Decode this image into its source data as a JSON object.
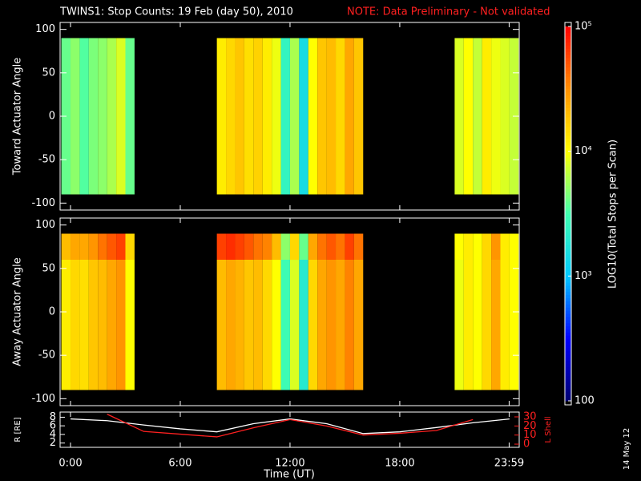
{
  "chart_data": [
    {
      "type": "heatmap",
      "title": "TWINS1: Stop Counts: 19 Feb (day  50), 2010",
      "annotation": "NOTE: Data Preliminary - Not validated",
      "ylabel": "Toward Actuator Angle",
      "xlim": [
        -0.57,
        24.53
      ],
      "ylim": [
        -108,
        108
      ],
      "yticks": [
        -100,
        -50,
        0,
        50,
        100
      ],
      "x_bins": [
        -0.5,
        0,
        0.5,
        1,
        1.5,
        2,
        2.5,
        3,
        3.5,
        4,
        4.5,
        5,
        5.5,
        6,
        6.5,
        7,
        7.5,
        8,
        8.5,
        9,
        9.5,
        10,
        10.5,
        11,
        11.5,
        12,
        12.5,
        13,
        13.5,
        14,
        14.5,
        15,
        15.5,
        16,
        16.5,
        17,
        17.5,
        18,
        18.5,
        19,
        19.5,
        20,
        20.5,
        21,
        21.5,
        22,
        22.5,
        23,
        23.5,
        24,
        24.5
      ],
      "y_bins": [
        -90,
        90
      ],
      "z": [
        [
          4000,
          5000,
          3500,
          4500,
          5000,
          6000,
          8000,
          4000,
          null,
          null,
          null,
          null,
          null,
          null,
          null,
          null,
          null,
          12000,
          15000,
          18000,
          14000,
          16000,
          12000,
          9000,
          2500,
          6000,
          1500,
          10000,
          18000,
          20000,
          15000,
          25000,
          18000,
          null,
          null,
          null,
          null,
          null,
          null,
          null,
          null,
          null,
          null,
          8000,
          10000,
          7000,
          12000,
          9000,
          8000,
          7000
        ]
      ]
    },
    {
      "type": "heatmap",
      "ylabel": "Away Actuator Angle",
      "xlim": [
        -0.57,
        24.53
      ],
      "ylim": [
        -108,
        108
      ],
      "yticks": [
        -100,
        -50,
        0,
        50,
        100
      ],
      "x_bins": [
        -0.5,
        0,
        0.5,
        1,
        1.5,
        2,
        2.5,
        3,
        3.5,
        4,
        4.5,
        5,
        5.5,
        6,
        6.5,
        7,
        7.5,
        8,
        8.5,
        9,
        9.5,
        10,
        10.5,
        11,
        11.5,
        12,
        12.5,
        13,
        13.5,
        14,
        14.5,
        15,
        15.5,
        16,
        16.5,
        17,
        17.5,
        18,
        18.5,
        19,
        19.5,
        20,
        20.5,
        21,
        21.5,
        22,
        22.5,
        23,
        23.5,
        24,
        24.5
      ],
      "y_bins": [
        -90,
        60,
        90
      ],
      "z": [
        [
          12000,
          15000,
          14000,
          18000,
          20000,
          25000,
          30000,
          10000,
          null,
          null,
          null,
          null,
          null,
          null,
          null,
          null,
          null,
          20000,
          25000,
          22000,
          18000,
          20000,
          15000,
          10000,
          3000,
          8000,
          2000,
          15000,
          25000,
          30000,
          25000,
          35000,
          25000,
          null,
          null,
          null,
          null,
          null,
          null,
          null,
          null,
          null,
          null,
          9000,
          12000,
          10000,
          15000,
          25000,
          12000,
          10000
        ],
        [
          20000,
          25000,
          25000,
          30000,
          40000,
          50000,
          60000,
          15000,
          null,
          null,
          null,
          null,
          null,
          null,
          null,
          null,
          null,
          60000,
          70000,
          60000,
          50000,
          40000,
          35000,
          20000,
          5000,
          15000,
          4000,
          25000,
          40000,
          50000,
          40000,
          60000,
          40000,
          null,
          null,
          null,
          null,
          null,
          null,
          null,
          null,
          null,
          null,
          10000,
          12000,
          10000,
          15000,
          30000,
          12000,
          10000
        ]
      ]
    },
    {
      "type": "line",
      "xlabel": "Time (UT)",
      "ylabel": "R [RE]",
      "y2label": "L Shell",
      "xlim": [
        -0.57,
        24.53
      ],
      "ylim": [
        1,
        9.2
      ],
      "y2lim": [
        -3.5,
        35.3
      ],
      "xticks": [
        {
          "value": 0,
          "label": "0:00"
        },
        {
          "value": 6,
          "label": "6:00"
        },
        {
          "value": 12,
          "label": "12:00"
        },
        {
          "value": 18,
          "label": "18:00"
        },
        {
          "value": 23.98,
          "label": "23:59"
        }
      ],
      "yticks": [
        2,
        4,
        6,
        8
      ],
      "y2ticks": [
        0,
        10,
        20,
        30
      ],
      "x": [
        0,
        2,
        4,
        6,
        8,
        10,
        12,
        14,
        16,
        18,
        20,
        22,
        24
      ],
      "series": [
        {
          "name": "R",
          "color": "#ffffff",
          "values": [
            7.6,
            7.2,
            6.2,
            5.3,
            4.6,
            6.5,
            7.6,
            6.5,
            4.2,
            4.6,
            5.6,
            6.7,
            7.6
          ]
        },
        {
          "name": "L Shell",
          "color": "#ff2020",
          "axis": "y2",
          "values": [
            null,
            33,
            14,
            11,
            8,
            18,
            27,
            20,
            10,
            12,
            15,
            27,
            null
          ]
        }
      ]
    },
    {
      "type": "colorbar",
      "label": "LOG10(Total Stops per Scan)",
      "clim": [
        100,
        100000
      ],
      "log": true,
      "ticks": [
        {
          "value": 100000,
          "label": "10⁵"
        },
        {
          "value": 10000,
          "label": "10⁴"
        },
        {
          "value": 1000,
          "label": "10³"
        },
        100
      ],
      "colormap": [
        "#000070",
        "#0000ff",
        "#00c8ff",
        "#40ffb0",
        "#ffff00",
        "#ff9000",
        "#ff0000"
      ]
    }
  ],
  "stamp": "14 May 12"
}
